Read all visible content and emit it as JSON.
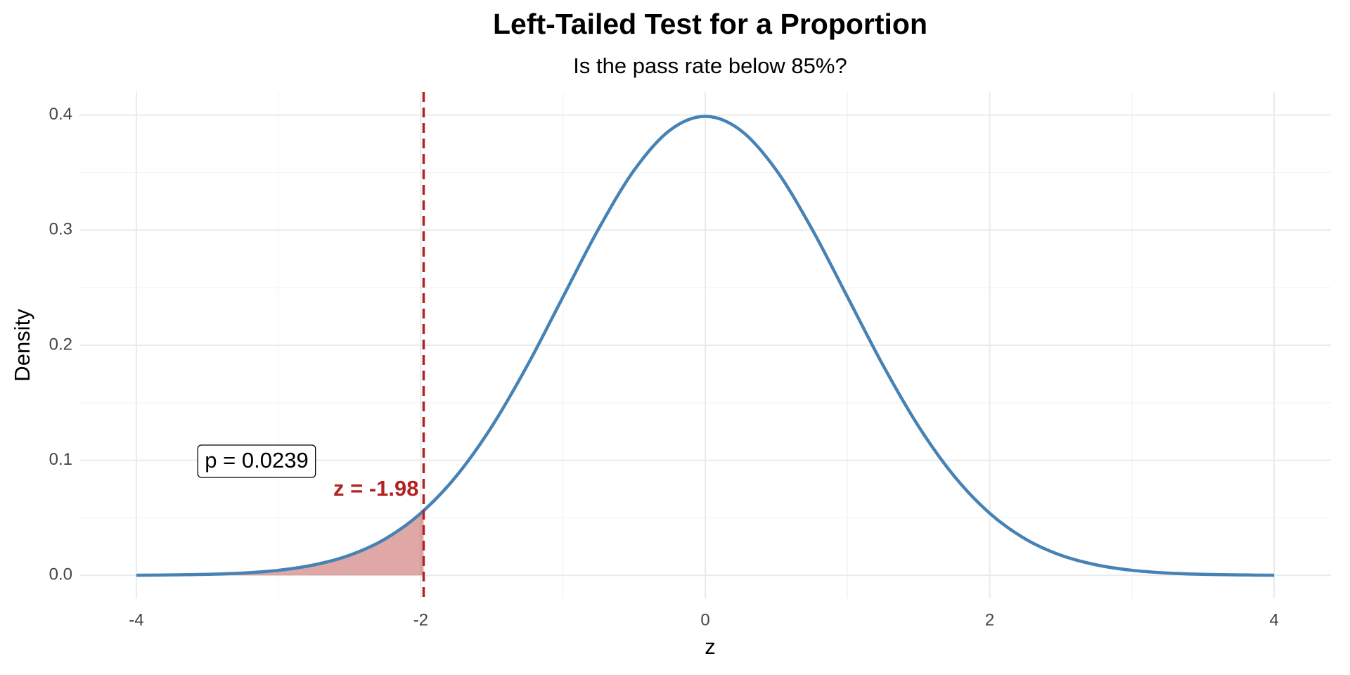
{
  "chart_data": {
    "type": "density",
    "title": "Left-Tailed Test for a Proportion",
    "subtitle": "Is the pass rate below 85%?",
    "x_label": "z",
    "y_label": "Density",
    "curve": {
      "color": "#4682b4",
      "x": [
        -4,
        -3.75,
        -3.5,
        -3.25,
        -3,
        -2.75,
        -2.5,
        -2.25,
        -2,
        -1.75,
        -1.5,
        -1.25,
        -1,
        -0.75,
        -0.5,
        -0.25,
        0,
        0.25,
        0.5,
        0.75,
        1,
        1.25,
        1.5,
        1.75,
        2,
        2.25,
        2.5,
        2.75,
        3,
        3.25,
        3.5,
        3.75,
        4
      ],
      "values": [
        0.0001,
        0.0004,
        0.0009,
        0.002,
        0.0044,
        0.0091,
        0.0175,
        0.0317,
        0.054,
        0.0863,
        0.1295,
        0.1826,
        0.242,
        0.3011,
        0.3521,
        0.3867,
        0.3989,
        0.3867,
        0.3521,
        0.3011,
        0.242,
        0.1826,
        0.1295,
        0.0863,
        0.054,
        0.0317,
        0.0175,
        0.0091,
        0.0044,
        0.002,
        0.0009,
        0.0004,
        0.0001
      ]
    },
    "shade": {
      "color": "#b22222",
      "x": [
        -4,
        -3.75,
        -3.5,
        -3.25,
        -3,
        -2.75,
        -2.5,
        -2.25,
        -2,
        -1.98
      ],
      "values": [
        0.0001,
        0.0004,
        0.0009,
        0.002,
        0.0044,
        0.0091,
        0.0175,
        0.0317,
        0.054,
        0.0562
      ]
    },
    "vline": {
      "x": -1.98,
      "color": "#b22222",
      "label": "z = -1.98"
    },
    "p_label": "p = 0.0239",
    "xlim": [
      -4.4,
      4.4
    ],
    "ylim": [
      -0.02,
      0.42
    ],
    "xticks": [
      -4,
      -2,
      0,
      2,
      4
    ],
    "yticks": [
      {
        "value": 0,
        "label": "0.0"
      },
      0.1,
      0.2,
      0.3,
      0.4
    ],
    "grid": true
  }
}
